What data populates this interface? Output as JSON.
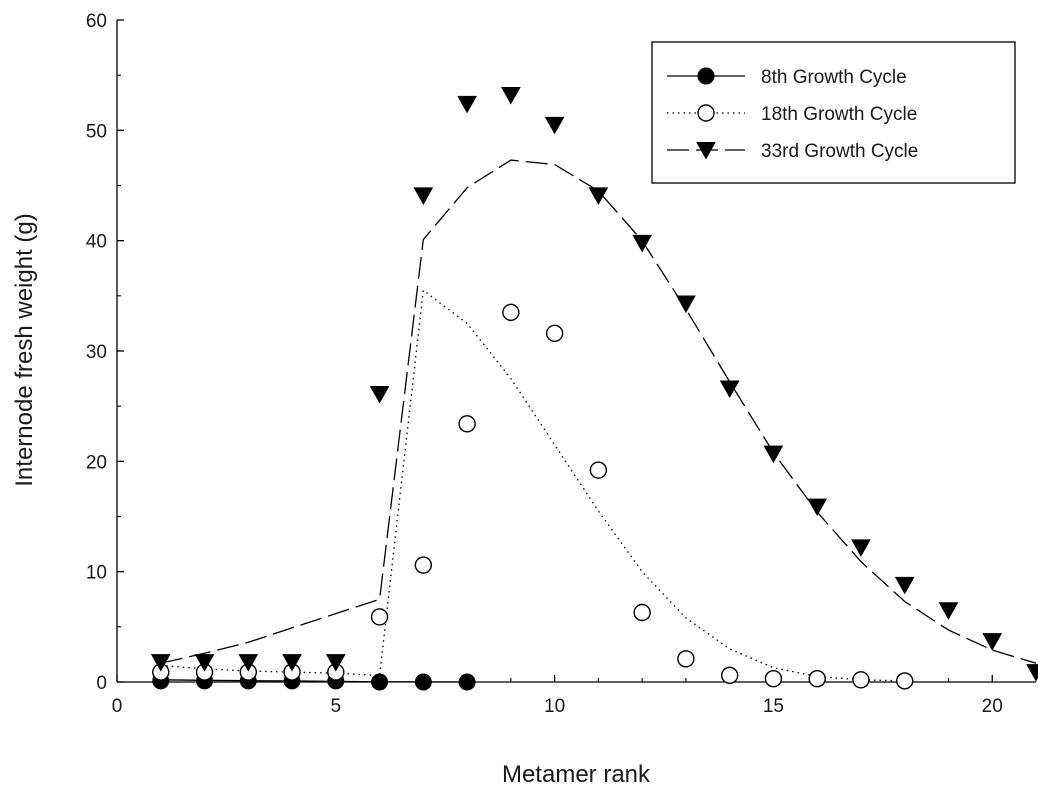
{
  "chart_data": {
    "type": "scatter",
    "xlabel": "Metamer rank",
    "ylabel": "Internode fresh weight (g)",
    "xlim": [
      0,
      21
    ],
    "ylim": [
      0,
      60
    ],
    "x_ticks": [
      0,
      5,
      10,
      15,
      20
    ],
    "y_ticks": [
      0,
      10,
      20,
      30,
      40,
      50,
      60
    ],
    "grid": false,
    "legend_position": "top-right",
    "series": [
      {
        "name": "8th Growth Cycle",
        "marker": "filled-circle",
        "line_style": "solid",
        "points": {
          "x": [
            1,
            2,
            3,
            4,
            5,
            6,
            7,
            8
          ],
          "y": [
            0.1,
            0.1,
            0.1,
            0.1,
            0.1,
            0.0,
            0.0,
            0.0
          ]
        },
        "fit": {
          "x": [
            1,
            2,
            3,
            4,
            5,
            6,
            7,
            8
          ],
          "y": [
            0.2,
            0.15,
            0.12,
            0.1,
            0.05,
            0.02,
            0.01,
            0.0
          ]
        }
      },
      {
        "name": "18th Growth Cycle",
        "marker": "open-circle",
        "line_style": "dotted",
        "points": {
          "x": [
            1,
            2,
            3,
            4,
            5,
            6,
            7,
            8,
            9,
            10,
            11,
            12,
            13,
            14,
            15,
            16,
            17,
            18
          ],
          "y": [
            0.9,
            0.9,
            0.9,
            0.9,
            0.9,
            5.9,
            10.6,
            23.4,
            33.5,
            31.6,
            19.2,
            6.3,
            2.1,
            0.6,
            0.3,
            0.3,
            0.2,
            0.1
          ]
        },
        "fit": {
          "x": [
            1,
            2,
            3,
            4,
            5,
            6,
            7,
            8,
            9,
            10,
            11,
            12,
            13,
            14,
            15,
            16,
            17,
            18
          ],
          "y": [
            1.5,
            1.2,
            1.0,
            0.9,
            0.8,
            0.6,
            35.5,
            32.5,
            27.5,
            21.5,
            15.5,
            10.0,
            5.8,
            3.0,
            1.3,
            0.5,
            0.2,
            0.1
          ]
        }
      },
      {
        "name": "33rd Growth Cycle",
        "marker": "filled-triangle-down",
        "line_style": "dashed",
        "points": {
          "x": [
            1,
            2,
            3,
            4,
            5,
            6,
            7,
            8,
            9,
            10,
            11,
            12,
            13,
            14,
            15,
            16,
            17,
            18,
            19,
            20,
            21
          ],
          "y": [
            1.8,
            1.8,
            1.8,
            1.8,
            1.8,
            26.1,
            44.1,
            52.4,
            53.2,
            50.5,
            44.1,
            39.8,
            34.3,
            26.6,
            20.7,
            15.9,
            12.2,
            8.8,
            6.5,
            3.7,
            0.9
          ]
        },
        "fit": {
          "x": [
            1,
            2,
            3,
            4,
            5,
            6,
            7,
            8,
            9,
            10,
            11,
            12,
            13,
            14,
            15,
            16,
            17,
            18,
            19,
            20,
            21
          ],
          "y": [
            1.7,
            2.6,
            3.6,
            4.9,
            6.2,
            7.5,
            40.1,
            44.8,
            47.3,
            46.9,
            44.5,
            40.0,
            33.8,
            27.2,
            20.8,
            15.4,
            10.9,
            7.3,
            4.7,
            2.9,
            1.7
          ]
        }
      }
    ]
  }
}
